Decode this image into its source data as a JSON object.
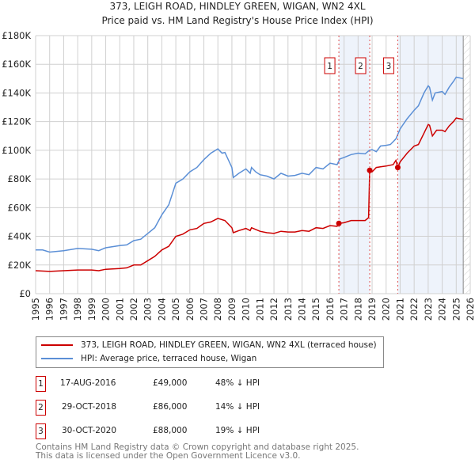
{
  "title_line1": "373, LEIGH ROAD, HINDLEY GREEN, WIGAN, WN2 4XL",
  "title_line2": "Price paid vs. HM Land Registry's House Price Index (HPI)",
  "colors": {
    "property": "#cc0000",
    "hpi": "#5b8fd6",
    "shade": "#eef3fb"
  },
  "chart_data": {
    "type": "line",
    "title": "Price paid vs. HM Land Registry's House Price Index (HPI)",
    "xlim": [
      1995,
      2026
    ],
    "ylim": [
      0,
      180000
    ],
    "y_ticks": [
      0,
      20000,
      40000,
      60000,
      80000,
      100000,
      120000,
      140000,
      160000,
      180000
    ],
    "y_tick_labels": [
      "£0",
      "£20K",
      "£40K",
      "£60K",
      "£80K",
      "£100K",
      "£120K",
      "£140K",
      "£160K",
      "£180K"
    ],
    "x_ticks": [
      1995,
      1996,
      1997,
      1998,
      1999,
      2000,
      2001,
      2002,
      2003,
      2004,
      2005,
      2006,
      2007,
      2008,
      2009,
      2010,
      2011,
      2012,
      2013,
      2014,
      2015,
      2016,
      2017,
      2018,
      2019,
      2020,
      2021,
      2022,
      2023,
      2024,
      2025,
      2026
    ],
    "grid": true,
    "series": [
      {
        "name": "373, LEIGH ROAD, HINDLEY GREEN, WIGAN, WN2 4XL (terraced house)",
        "x": [
          1995,
          1996,
          1997,
          1998,
          1999,
          1999.5,
          2000,
          2001,
          2001.5,
          2002,
          2002.5,
          2003,
          2003.5,
          2004,
          2004.5,
          2005,
          2005.5,
          2006,
          2006.5,
          2007,
          2007.5,
          2008,
          2008.5,
          2009,
          2009.1,
          2009.5,
          2010,
          2010.3,
          2010.4,
          2011,
          2011.5,
          2012,
          2012.5,
          2013,
          2013.5,
          2014,
          2014.5,
          2015,
          2015.5,
          2016,
          2016.5,
          2016.63,
          2017,
          2017.5,
          2018,
          2018.5,
          2018.75,
          2018.83,
          2019,
          2019.3,
          2019.6,
          2020,
          2020.5,
          2020.7,
          2020.83,
          2021,
          2021.5,
          2022,
          2022.3,
          2022.7,
          2023,
          2023.1,
          2023.3,
          2023.6,
          2024,
          2024.2,
          2024.5,
          2024.8,
          2025,
          2025.5
        ],
        "y": [
          16000,
          15500,
          16000,
          16500,
          16500,
          16000,
          17000,
          17500,
          18000,
          20000,
          20000,
          23000,
          26000,
          30500,
          33000,
          40000,
          41500,
          44500,
          45500,
          49000,
          50000,
          52500,
          51000,
          46000,
          42500,
          44000,
          45500,
          44000,
          46000,
          43500,
          42500,
          42000,
          43500,
          43000,
          43000,
          44000,
          43500,
          46000,
          45500,
          47500,
          47000,
          49000,
          49500,
          51000,
          51000,
          51000,
          53000,
          86000,
          85000,
          88000,
          88500,
          89000,
          90000,
          93000,
          88000,
          92000,
          98000,
          103000,
          104000,
          112000,
          118000,
          117500,
          110000,
          114000,
          114000,
          113000,
          117000,
          120000,
          122500,
          121500
        ]
      },
      {
        "name": "HPI: Average price, terraced house, Wigan",
        "x": [
          1995,
          1995.5,
          1996,
          1997,
          1998,
          1999,
          1999.5,
          2000,
          2001,
          2001.5,
          2002,
          2002.5,
          2003,
          2003.5,
          2004,
          2004.5,
          2005,
          2005.5,
          2006,
          2006.5,
          2007,
          2007.5,
          2008,
          2008.3,
          2008.5,
          2009,
          2009.1,
          2009.5,
          2010,
          2010.3,
          2010.4,
          2010.7,
          2011,
          2011.5,
          2012,
          2012.5,
          2013,
          2013.5,
          2014,
          2014.5,
          2015,
          2015.5,
          2016,
          2016.5,
          2016.7,
          2017,
          2017.5,
          2018,
          2018.5,
          2018.8,
          2019,
          2019.3,
          2019.6,
          2020,
          2020.3,
          2020.7,
          2021,
          2021.5,
          2022,
          2022.3,
          2022.7,
          2023,
          2023.1,
          2023.3,
          2023.5,
          2024,
          2024.2,
          2024.5,
          2024.8,
          2025,
          2025.5
        ],
        "y": [
          30500,
          30500,
          29000,
          30000,
          31500,
          31000,
          30000,
          32000,
          33500,
          34000,
          37000,
          38000,
          42000,
          46000,
          55000,
          62000,
          77000,
          80000,
          85000,
          88000,
          93500,
          98000,
          101000,
          98000,
          98500,
          88000,
          81000,
          84000,
          87000,
          84000,
          88000,
          85000,
          83000,
          82000,
          80000,
          84000,
          82000,
          82500,
          84000,
          83000,
          88000,
          87000,
          91000,
          90000,
          94000,
          95000,
          97000,
          98000,
          97500,
          100000,
          100500,
          99000,
          103000,
          103500,
          104000,
          108000,
          115000,
          122000,
          128000,
          131000,
          140000,
          145000,
          144000,
          135000,
          140000,
          141000,
          139000,
          144000,
          148000,
          151000,
          150000
        ]
      }
    ],
    "sales": [
      {
        "label": "1",
        "x": 2016.63,
        "price": 49000
      },
      {
        "label": "2",
        "x": 2018.83,
        "price": 86000
      },
      {
        "label": "3",
        "x": 2020.83,
        "price": 88000
      }
    ],
    "shaded_ranges": [
      [
        2016.63,
        2018.83
      ],
      [
        2020.83,
        2025.5
      ]
    ],
    "hatched_from": 2025.5
  },
  "legend": [
    {
      "label": "373, LEIGH ROAD, HINDLEY GREEN, WIGAN, WN2 4XL (terraced house)"
    },
    {
      "label": "HPI: Average price, terraced house, Wigan"
    }
  ],
  "transactions": [
    {
      "n": "1",
      "date": "17-AUG-2016",
      "price": "£49,000",
      "hpi": "48% ↓ HPI"
    },
    {
      "n": "2",
      "date": "29-OCT-2018",
      "price": "£86,000",
      "hpi": "14% ↓ HPI"
    },
    {
      "n": "3",
      "date": "30-OCT-2020",
      "price": "£88,000",
      "hpi": "19% ↓ HPI"
    }
  ],
  "footer_line1": "Contains HM Land Registry data © Crown copyright and database right 2025.",
  "footer_line2": "This data is licensed under the Open Government Licence v3.0."
}
